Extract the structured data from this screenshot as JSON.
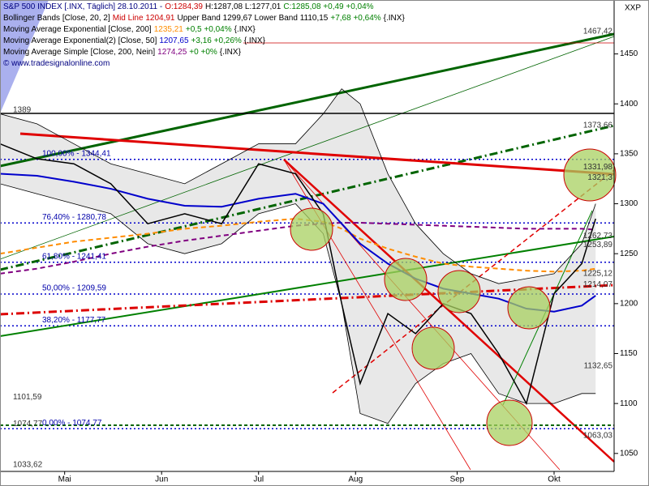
{
  "chart_data": {
    "type": "line",
    "corner_label": "XXP",
    "legend": [
      [
        {
          "text": "S&P 500 INDEX [.INX, Täglich] 28.10.2011 -",
          "color": "#000080"
        },
        {
          "text": "O:1284,39",
          "color": "#cc0000"
        },
        {
          "text": "H:1287,08 L:1277,01",
          "color": "#000000"
        },
        {
          "text": "C:1285,08 +0,49 +0,04%",
          "color": "#008000"
        }
      ],
      [
        {
          "text": "Bollinger Bands [Close, 20, 2]",
          "color": "#000000"
        },
        {
          "text": "Mid Line 1204,91",
          "color": "#cc0000"
        },
        {
          "text": "Upper Band 1299,67 Lower Band 1110,15",
          "color": "#000000"
        },
        {
          "text": "+7,68 +0,64%",
          "color": "#008000"
        },
        {
          "text": "{.INX}",
          "color": "#000000"
        }
      ],
      [
        {
          "text": "Moving Average Exponential [Close, 200]",
          "color": "#000000"
        },
        {
          "text": "1235,21",
          "color": "#ff8c00"
        },
        {
          "text": "+0,5 +0,04%",
          "color": "#008000"
        },
        {
          "text": "{.INX}",
          "color": "#000000"
        }
      ],
      [
        {
          "text": "Moving Average Exponential(2) [Close, 50]",
          "color": "#000000"
        },
        {
          "text": "1207,65",
          "color": "#0000cc"
        },
        {
          "text": "+3,16 +0,26%",
          "color": "#008000"
        },
        {
          "text": "{.INX}",
          "color": "#000000"
        }
      ],
      [
        {
          "text": "Moving Average Simple [Close, 200, Nein]",
          "color": "#000000"
        },
        {
          "text": "1274,25",
          "color": "#800080"
        },
        {
          "text": "+0 +0%",
          "color": "#008000"
        },
        {
          "text": "{.INX}",
          "color": "#000000"
        }
      ],
      [
        {
          "text": "© www.tradesignalonline.com",
          "color": "#000080"
        }
      ]
    ],
    "x": [
      0,
      8,
      16,
      24,
      32,
      40,
      48,
      56,
      64,
      70,
      74,
      78,
      84,
      90,
      96,
      102,
      108,
      114,
      120,
      126,
      129
    ],
    "series": [
      {
        "name": "Bollinger Upper",
        "color": "#000000",
        "width": 0.8,
        "values": [
          1390,
          1380,
          1360,
          1340,
          1330,
          1320,
          1340,
          1360,
          1360,
          1390,
          1415,
          1400,
          1330,
          1280,
          1250,
          1230,
          1220,
          1225,
          1230,
          1260,
          1300
        ]
      },
      {
        "name": "Bollinger Lower",
        "color": "#000000",
        "width": 0.8,
        "values": [
          1320,
          1310,
          1300,
          1290,
          1260,
          1250,
          1260,
          1290,
          1300,
          1270,
          1200,
          1090,
          1080,
          1120,
          1140,
          1150,
          1110,
          1100,
          1100,
          1110,
          1110
        ]
      },
      {
        "name": "SMA 200",
        "color": "#800080",
        "width": 2,
        "dash": "6 4",
        "values": [
          1230,
          1235,
          1242,
          1250,
          1257,
          1263,
          1268,
          1273,
          1278,
          1280,
          1281,
          1281,
          1280,
          1279,
          1278,
          1277,
          1276,
          1275,
          1275,
          1275,
          1274
        ]
      },
      {
        "name": "EMA 200",
        "color": "#ff8c00",
        "width": 2,
        "dash": "6 4",
        "values": [
          1250,
          1256,
          1262,
          1266,
          1270,
          1275,
          1278,
          1282,
          1285,
          1282,
          1275,
          1265,
          1255,
          1247,
          1240,
          1237,
          1235,
          1233,
          1232,
          1233,
          1235
        ]
      },
      {
        "name": "EMA 50",
        "color": "#0000cc",
        "width": 2,
        "values": [
          1330,
          1328,
          1322,
          1315,
          1305,
          1298,
          1297,
          1305,
          1310,
          1300,
          1280,
          1260,
          1240,
          1225,
          1215,
          1210,
          1205,
          1195,
          1192,
          1198,
          1208
        ]
      },
      {
        "name": "Close",
        "color": "#000000",
        "width": 1.5,
        "values": [
          1360,
          1345,
          1340,
          1320,
          1280,
          1290,
          1280,
          1340,
          1330,
          1290,
          1200,
          1120,
          1190,
          1170,
          1200,
          1190,
          1150,
          1100,
          1210,
          1240,
          1285
        ]
      }
    ],
    "band_color": "#e8e8e8",
    "xlim": [
      0,
      133
    ],
    "xticks": [
      {
        "value": 14,
        "label": "Mai"
      },
      {
        "value": 35,
        "label": "Jun"
      },
      {
        "value": 56,
        "label": "Jul"
      },
      {
        "value": 77,
        "label": "Aug"
      },
      {
        "value": 99,
        "label": "Sep"
      },
      {
        "value": 120,
        "label": "Okt"
      }
    ],
    "ylim": [
      1032,
      1504
    ],
    "yticks": [
      1050,
      1100,
      1150,
      1200,
      1250,
      1300,
      1350,
      1400,
      1450
    ],
    "fib_levels": [
      {
        "value": 1344.41,
        "label": "100,00% - 1344,41"
      },
      {
        "value": 1280.78,
        "label": "76,40% - 1280,78"
      },
      {
        "value": 1241.41,
        "label": "61,80% - 1241,41"
      },
      {
        "value": 1209.59,
        "label": "50,00% - 1209,59"
      },
      {
        "value": 1177.77,
        "label": "38,20% - 1177,77"
      },
      {
        "value": 1074.77,
        "label": "0,00% - 1074,77"
      }
    ],
    "right_labels": [
      {
        "value": 1467.42,
        "label": "1467,42"
      },
      {
        "value": 1373.66,
        "label": "1373,66"
      },
      {
        "value": 1331.98,
        "label": "1331,98"
      },
      {
        "value": 1321.3,
        "label": "1321,3"
      },
      {
        "value": 1262.73,
        "label": "1262,73"
      },
      {
        "value": 1253.89,
        "label": "1253,89"
      },
      {
        "value": 1225.12,
        "label": "1225,12"
      },
      {
        "value": 1214.07,
        "label": "1214,07"
      },
      {
        "value": 1132.65,
        "label": "1132,65"
      },
      {
        "value": 1063.03,
        "label": "1063,03"
      }
    ],
    "left_labels": [
      {
        "value": 1389,
        "label": "1389"
      },
      {
        "value": 1101.59,
        "label": "1101,59"
      },
      {
        "value": 1074.77,
        "label": "1074,77"
      },
      {
        "value": 1033.62,
        "label": "1033,62"
      }
    ]
  }
}
